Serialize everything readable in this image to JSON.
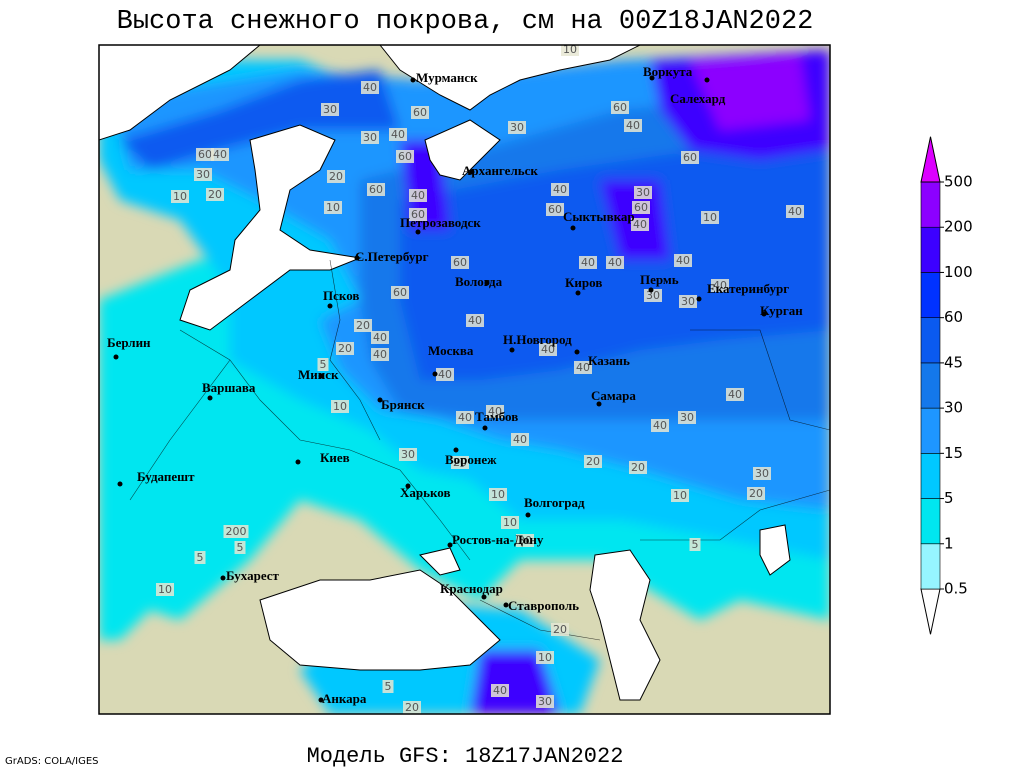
{
  "header": {
    "title": "Высота снежного покрова, см на 00Z18JAN2022"
  },
  "map": {
    "cities": [
      "Мурманск",
      "Воркута",
      "Салехард",
      "Архангельск",
      "Петрозаводск",
      "Сыктывкар",
      "С.Петербург",
      "Вологда",
      "Киров",
      "Пермь",
      "Екатеринбург",
      "Курган",
      "Псков",
      "Н.Новгород",
      "Казань",
      "Берлин",
      "Москва",
      "Минск",
      "Варшава",
      "Брянск",
      "Самара",
      "Тамбов",
      "Киев",
      "Воронеж",
      "Будапешт",
      "Харьков",
      "Волгоград",
      "Ростов-на-Дону",
      "Бухарест",
      "Краснодар",
      "Ставрополь",
      "Анкара"
    ],
    "contour_labels": [
      10,
      40,
      30,
      60,
      40,
      30,
      60,
      40,
      30,
      60,
      60,
      40,
      30,
      20,
      20,
      10,
      60,
      60,
      40,
      30,
      60,
      60,
      40,
      60,
      10,
      10,
      40,
      40,
      60,
      40,
      40,
      40,
      60,
      30,
      40,
      30,
      20,
      40,
      40,
      20,
      40,
      40,
      5,
      40,
      40,
      10,
      40,
      40,
      40,
      40,
      30,
      40,
      30,
      20,
      20,
      20,
      30,
      20,
      10,
      10,
      10,
      30,
      200,
      5,
      5,
      10,
      5,
      20,
      10,
      5,
      40,
      30,
      20
    ]
  },
  "legend": {
    "levels": [
      0.5,
      1,
      5,
      15,
      30,
      45,
      60,
      100,
      200,
      500
    ],
    "colors": [
      "#ffffff",
      "#96f5ff",
      "#00e6f0",
      "#00c8ff",
      "#1e96ff",
      "#1478eb",
      "#0a5af0",
      "#0032ff",
      "#3c00ff",
      "#8c00ff",
      "#dc00ff"
    ]
  },
  "footer": {
    "model": "Модель GFS: 18Z17JAN2022",
    "credit": "GrADS: COLA/IGES"
  }
}
